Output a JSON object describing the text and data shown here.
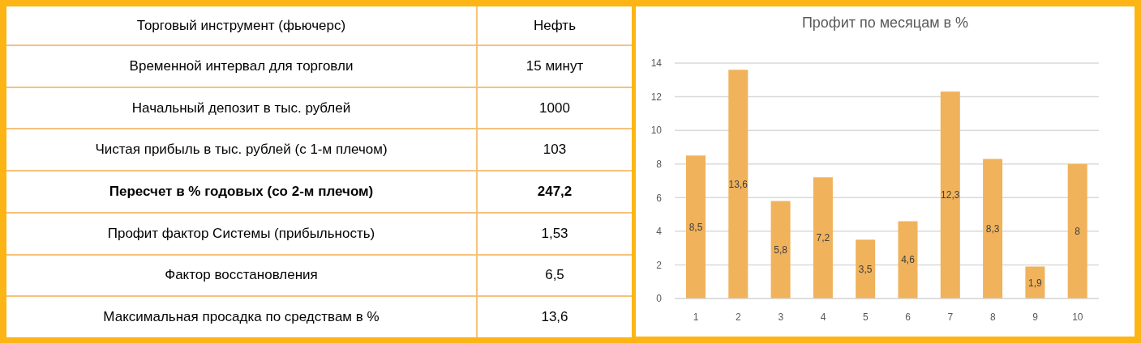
{
  "chart_data": [
    {
      "type": "other",
      "annotations": [
        "Торговый инструмент (фьючерс)",
        "Нефть",
        "Временной интервал для торговли",
        "15 минут",
        "Начальный депозит в тыс. рублей",
        "1000",
        "Чистая прибыль в тыс. рублей (с 1-м плечом)",
        "103",
        "Пересчет в % годовых (со 2-м плечом)",
        "247,2",
        "Профит фактор Системы (прибыльность)",
        "1,53",
        "Фактор восстановления",
        "6,5",
        "Максимальная просадка по средствам в %",
        "13,6"
      ]
    },
    {
      "type": "bar",
      "title": "Профит по месяцам в %",
      "categories": [
        "1",
        "2",
        "3",
        "4",
        "5",
        "6",
        "7",
        "8",
        "9",
        "10"
      ],
      "values": [
        8.5,
        13.6,
        5.8,
        7.2,
        3.5,
        4.6,
        12.3,
        8.3,
        1.9,
        8
      ],
      "value_labels": [
        "8,5",
        "13,6",
        "5,8",
        "7,2",
        "3,5",
        "4,6",
        "12,3",
        "8,3",
        "1,9",
        "8"
      ],
      "color": "#f0b25b",
      "ylim": [
        0,
        14
      ],
      "yticks": [
        0,
        2,
        4,
        6,
        8,
        10,
        12,
        14
      ],
      "grid": "y"
    }
  ]
}
